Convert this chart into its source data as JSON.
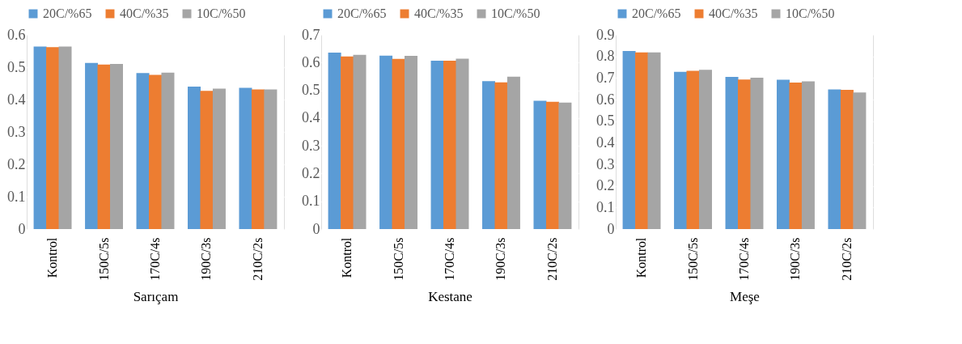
{
  "chart_data": [
    {
      "type": "bar",
      "xlabel": "Sarıçam",
      "categories": [
        "Kontrol",
        "150C/5s",
        "170C/4s",
        "190C/3s",
        "210C/2s"
      ],
      "series": [
        {
          "name": "20C/%65",
          "color": "#5b9bd5",
          "values": [
            0.564,
            0.513,
            0.482,
            0.44,
            0.436
          ]
        },
        {
          "name": "40C/%35",
          "color": "#ed7d31",
          "values": [
            0.562,
            0.508,
            0.476,
            0.427,
            0.431
          ]
        },
        {
          "name": "10C/%50",
          "color": "#a5a5a5",
          "values": [
            0.564,
            0.51,
            0.483,
            0.434,
            0.431
          ]
        }
      ],
      "ylim": [
        0,
        0.6
      ],
      "yticks": [
        0,
        0.1,
        0.2,
        0.3,
        0.4,
        0.5,
        0.6
      ],
      "grid": "y",
      "legend": "top"
    },
    {
      "type": "bar",
      "xlabel": "Kestane",
      "categories": [
        "Kontrol",
        "150C/5s",
        "170C/4s",
        "190C/3s",
        "210C/2s"
      ],
      "series": [
        {
          "name": "20C/%65",
          "color": "#5b9bd5",
          "values": [
            0.636,
            0.625,
            0.607,
            0.533,
            0.462
          ]
        },
        {
          "name": "40C/%35",
          "color": "#ed7d31",
          "values": [
            0.622,
            0.613,
            0.607,
            0.529,
            0.459
          ]
        },
        {
          "name": "10C/%50",
          "color": "#a5a5a5",
          "values": [
            0.628,
            0.624,
            0.614,
            0.549,
            0.456
          ]
        }
      ],
      "ylim": [
        0,
        0.7
      ],
      "yticks": [
        0,
        0.1,
        0.2,
        0.3,
        0.4,
        0.5,
        0.6,
        0.7
      ],
      "grid": "y",
      "legend": "top"
    },
    {
      "type": "bar",
      "xlabel": "Meşe",
      "categories": [
        "Kontrol",
        "150C/5s",
        "170C/4s",
        "190C/3s",
        "210C/2s"
      ],
      "series": [
        {
          "name": "20C/%65",
          "color": "#5b9bd5",
          "values": [
            0.825,
            0.728,
            0.705,
            0.692,
            0.647
          ]
        },
        {
          "name": "40C/%35",
          "color": "#ed7d31",
          "values": [
            0.818,
            0.733,
            0.693,
            0.679,
            0.645
          ]
        },
        {
          "name": "10C/%50",
          "color": "#a5a5a5",
          "values": [
            0.818,
            0.738,
            0.701,
            0.684,
            0.633
          ]
        }
      ],
      "ylim": [
        0,
        0.9
      ],
      "yticks": [
        0,
        0.1,
        0.2,
        0.3,
        0.4,
        0.5,
        0.6,
        0.7,
        0.8,
        0.9
      ],
      "grid": "y",
      "legend": "top"
    }
  ]
}
